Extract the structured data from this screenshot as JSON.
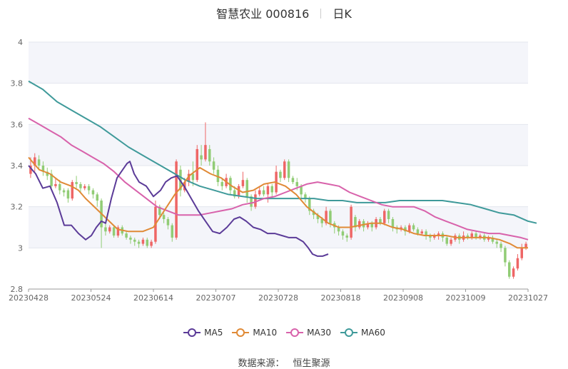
{
  "title": {
    "name": "智慧农业 000816",
    "period": "日K"
  },
  "source": {
    "label": "数据来源：",
    "value": "恒生聚源"
  },
  "colors": {
    "up": "#ee6666",
    "down": "#91cc75",
    "ma5": "#5b3b98",
    "ma10": "#e08a36",
    "ma30": "#d862ab",
    "ma60": "#3f9a9a"
  },
  "chart_data": {
    "type": "candlestick",
    "ylim": [
      2.8,
      4.0
    ],
    "yticks": [
      "2.8",
      "3",
      "3.2",
      "3.4",
      "3.6",
      "3.8",
      "4"
    ],
    "xticks": [
      "20230428",
      "20230524",
      "20230614",
      "20230707",
      "20230728",
      "20230818",
      "20230908",
      "20231009",
      "20231027"
    ],
    "legend": [
      "MA5",
      "MA10",
      "MA30",
      "MA60"
    ],
    "grid": true,
    "candles": [
      [
        3.36,
        3.4,
        3.44,
        3.34
      ],
      [
        3.4,
        3.44,
        3.46,
        3.37
      ],
      [
        3.43,
        3.4,
        3.45,
        3.38
      ],
      [
        3.4,
        3.37,
        3.42,
        3.35
      ],
      [
        3.37,
        3.35,
        3.39,
        3.33
      ],
      [
        3.36,
        3.3,
        3.38,
        3.29
      ],
      [
        3.3,
        3.31,
        3.34,
        3.29
      ],
      [
        3.31,
        3.28,
        3.33,
        3.26
      ],
      [
        3.28,
        3.27,
        3.29,
        3.25
      ],
      [
        3.28,
        3.24,
        3.29,
        3.22
      ],
      [
        3.24,
        3.32,
        3.33,
        3.23
      ],
      [
        3.32,
        3.31,
        3.35,
        3.29
      ],
      [
        3.31,
        3.29,
        3.32,
        3.27
      ],
      [
        3.29,
        3.3,
        3.31,
        3.28
      ],
      [
        3.3,
        3.28,
        3.31,
        3.26
      ],
      [
        3.28,
        3.26,
        3.29,
        3.24
      ],
      [
        3.26,
        3.23,
        3.27,
        3.2
      ],
      [
        3.23,
        3.1,
        3.24,
        3.0
      ],
      [
        3.1,
        3.08,
        3.12,
        3.06
      ],
      [
        3.08,
        3.1,
        3.11,
        3.07
      ],
      [
        3.1,
        3.06,
        3.11,
        3.05
      ],
      [
        3.06,
        3.1,
        3.11,
        3.05
      ],
      [
        3.1,
        3.07,
        3.11,
        3.06
      ],
      [
        3.07,
        3.05,
        3.08,
        3.04
      ],
      [
        3.05,
        3.04,
        3.06,
        3.02
      ],
      [
        3.04,
        3.03,
        3.05,
        3.01
      ],
      [
        3.03,
        3.02,
        3.04,
        3.0
      ],
      [
        3.02,
        3.04,
        3.05,
        3.01
      ],
      [
        3.04,
        3.01,
        3.05,
        3.0
      ],
      [
        3.01,
        3.03,
        3.04,
        3.0
      ],
      [
        3.03,
        3.2,
        3.23,
        3.02
      ],
      [
        3.2,
        3.16,
        3.21,
        3.14
      ],
      [
        3.16,
        3.14,
        3.17,
        3.12
      ],
      [
        3.14,
        3.11,
        3.15,
        3.09
      ],
      [
        3.11,
        3.05,
        3.12,
        3.03
      ],
      [
        3.05,
        3.42,
        3.43,
        3.04
      ],
      [
        3.38,
        3.28,
        3.4,
        3.25
      ],
      [
        3.28,
        3.32,
        3.34,
        3.27
      ],
      [
        3.32,
        3.36,
        3.38,
        3.3
      ],
      [
        3.36,
        3.33,
        3.42,
        3.3
      ],
      [
        3.33,
        3.48,
        3.5,
        3.32
      ],
      [
        3.45,
        3.43,
        3.5,
        3.4
      ],
      [
        3.43,
        3.5,
        3.61,
        3.42
      ],
      [
        3.48,
        3.42,
        3.5,
        3.4
      ],
      [
        3.42,
        3.38,
        3.44,
        3.36
      ],
      [
        3.38,
        3.32,
        3.4,
        3.3
      ],
      [
        3.32,
        3.3,
        3.34,
        3.28
      ],
      [
        3.3,
        3.34,
        3.36,
        3.29
      ],
      [
        3.34,
        3.28,
        3.35,
        3.26
      ],
      [
        3.28,
        3.25,
        3.3,
        3.24
      ],
      [
        3.25,
        3.3,
        3.31,
        3.24
      ],
      [
        3.3,
        3.33,
        3.37,
        3.29
      ],
      [
        3.33,
        3.25,
        3.34,
        3.22
      ],
      [
        3.25,
        3.2,
        3.26,
        3.18
      ],
      [
        3.2,
        3.26,
        3.28,
        3.19
      ],
      [
        3.26,
        3.28,
        3.3,
        3.25
      ],
      [
        3.28,
        3.26,
        3.3,
        3.25
      ],
      [
        3.26,
        3.3,
        3.31,
        3.22
      ],
      [
        3.3,
        3.27,
        3.31,
        3.25
      ],
      [
        3.27,
        3.37,
        3.4,
        3.26
      ],
      [
        3.37,
        3.34,
        3.38,
        3.32
      ],
      [
        3.34,
        3.42,
        3.43,
        3.33
      ],
      [
        3.42,
        3.34,
        3.43,
        3.32
      ],
      [
        3.34,
        3.32,
        3.35,
        3.31
      ],
      [
        3.32,
        3.3,
        3.34,
        3.28
      ],
      [
        3.3,
        3.26,
        3.31,
        3.24
      ],
      [
        3.26,
        3.24,
        3.27,
        3.22
      ],
      [
        3.24,
        3.18,
        3.25,
        3.16
      ],
      [
        3.18,
        3.16,
        3.19,
        3.14
      ],
      [
        3.16,
        3.14,
        3.17,
        3.12
      ],
      [
        3.14,
        3.12,
        3.15,
        3.1
      ],
      [
        3.12,
        3.18,
        3.2,
        3.11
      ],
      [
        3.18,
        3.12,
        3.19,
        3.1
      ],
      [
        3.12,
        3.1,
        3.13,
        3.07
      ],
      [
        3.1,
        3.08,
        3.11,
        3.06
      ],
      [
        3.08,
        3.06,
        3.09,
        3.04
      ],
      [
        3.06,
        3.05,
        3.07,
        3.03
      ],
      [
        3.05,
        3.2,
        3.21,
        3.04
      ],
      [
        3.15,
        3.1,
        3.16,
        3.08
      ],
      [
        3.1,
        3.13,
        3.14,
        3.09
      ],
      [
        3.13,
        3.1,
        3.14,
        3.08
      ],
      [
        3.1,
        3.12,
        3.13,
        3.09
      ],
      [
        3.12,
        3.1,
        3.13,
        3.08
      ],
      [
        3.1,
        3.14,
        3.15,
        3.09
      ],
      [
        3.14,
        3.12,
        3.15,
        3.11
      ],
      [
        3.12,
        3.18,
        3.19,
        3.11
      ],
      [
        3.18,
        3.14,
        3.19,
        3.12
      ],
      [
        3.14,
        3.1,
        3.15,
        3.08
      ],
      [
        3.1,
        3.09,
        3.11,
        3.07
      ],
      [
        3.09,
        3.1,
        3.11,
        3.08
      ],
      [
        3.1,
        3.08,
        3.11,
        3.06
      ],
      [
        3.08,
        3.11,
        3.12,
        3.07
      ],
      [
        3.11,
        3.09,
        3.12,
        3.08
      ],
      [
        3.09,
        3.07,
        3.1,
        3.06
      ],
      [
        3.07,
        3.08,
        3.09,
        3.06
      ],
      [
        3.08,
        3.06,
        3.09,
        3.04
      ],
      [
        3.06,
        3.05,
        3.07,
        3.03
      ],
      [
        3.05,
        3.06,
        3.07,
        3.04
      ],
      [
        3.06,
        3.07,
        3.08,
        3.04
      ],
      [
        3.07,
        3.05,
        3.08,
        3.03
      ],
      [
        3.05,
        3.02,
        3.06,
        3.01
      ],
      [
        3.02,
        3.04,
        3.05,
        3.01
      ],
      [
        3.04,
        3.06,
        3.07,
        3.03
      ],
      [
        3.06,
        3.04,
        3.07,
        3.02
      ],
      [
        3.04,
        3.06,
        3.08,
        3.03
      ],
      [
        3.06,
        3.05,
        3.07,
        3.04
      ],
      [
        3.05,
        3.07,
        3.08,
        3.04
      ],
      [
        3.07,
        3.05,
        3.08,
        3.04
      ],
      [
        3.05,
        3.06,
        3.07,
        3.04
      ],
      [
        3.06,
        3.04,
        3.07,
        3.03
      ],
      [
        3.04,
        3.05,
        3.06,
        3.03
      ],
      [
        3.05,
        3.03,
        3.06,
        3.02
      ],
      [
        3.03,
        3.02,
        3.04,
        3.0
      ],
      [
        3.02,
        3.0,
        3.03,
        2.98
      ],
      [
        3.0,
        2.93,
        3.01,
        2.91
      ],
      [
        2.93,
        2.86,
        2.94,
        2.85
      ],
      [
        2.86,
        2.9,
        2.91,
        2.85
      ],
      [
        2.9,
        2.95,
        2.97,
        2.89
      ],
      [
        2.95,
        3.0,
        3.02,
        2.94
      ],
      [
        3.0,
        3.02,
        3.03,
        2.99
      ]
    ],
    "ma5": [
      [
        0,
        3.4
      ],
      [
        10,
        3.36
      ],
      [
        20,
        3.29
      ],
      [
        30,
        3.3
      ],
      [
        40,
        3.22
      ],
      [
        50,
        3.11
      ],
      [
        60,
        3.11
      ],
      [
        70,
        3.07
      ],
      [
        80,
        3.04
      ],
      [
        88,
        3.06
      ],
      [
        95,
        3.1
      ],
      [
        102,
        3.13
      ],
      [
        108,
        3.12
      ],
      [
        116,
        3.24
      ],
      [
        124,
        3.34
      ],
      [
        130,
        3.37
      ],
      [
        138,
        3.41
      ],
      [
        142,
        3.42
      ],
      [
        148,
        3.36
      ],
      [
        155,
        3.32
      ],
      [
        165,
        3.3
      ],
      [
        175,
        3.25
      ],
      [
        185,
        3.28
      ],
      [
        192,
        3.32
      ],
      [
        200,
        3.34
      ],
      [
        208,
        3.35
      ],
      [
        218,
        3.3
      ],
      [
        228,
        3.24
      ],
      [
        238,
        3.18
      ],
      [
        248,
        3.13
      ],
      [
        258,
        3.08
      ],
      [
        268,
        3.07
      ],
      [
        278,
        3.1
      ],
      [
        288,
        3.14
      ],
      [
        296,
        3.15
      ],
      [
        305,
        3.13
      ],
      [
        315,
        3.1
      ],
      [
        325,
        3.09
      ],
      [
        335,
        3.07
      ],
      [
        345,
        3.07
      ],
      [
        355,
        3.06
      ],
      [
        365,
        3.05
      ],
      [
        375,
        3.05
      ],
      [
        385,
        3.03
      ],
      [
        392,
        3.0
      ],
      [
        398,
        2.97
      ],
      [
        405,
        2.96
      ],
      [
        412,
        2.96
      ],
      [
        420,
        2.97
      ]
    ],
    "ma10": [
      [
        0,
        3.44
      ],
      [
        15,
        3.38
      ],
      [
        30,
        3.36
      ],
      [
        45,
        3.32
      ],
      [
        60,
        3.3
      ],
      [
        70,
        3.28
      ],
      [
        80,
        3.24
      ],
      [
        95,
        3.19
      ],
      [
        110,
        3.14
      ],
      [
        125,
        3.09
      ],
      [
        140,
        3.08
      ],
      [
        160,
        3.08
      ],
      [
        175,
        3.1
      ],
      [
        190,
        3.18
      ],
      [
        205,
        3.26
      ],
      [
        215,
        3.3
      ],
      [
        225,
        3.35
      ],
      [
        240,
        3.39
      ],
      [
        255,
        3.36
      ],
      [
        270,
        3.34
      ],
      [
        285,
        3.3
      ],
      [
        300,
        3.27
      ],
      [
        315,
        3.28
      ],
      [
        330,
        3.31
      ],
      [
        345,
        3.32
      ],
      [
        360,
        3.3
      ],
      [
        375,
        3.26
      ],
      [
        390,
        3.2
      ],
      [
        405,
        3.16
      ],
      [
        420,
        3.12
      ],
      [
        435,
        3.1
      ],
      [
        450,
        3.1
      ],
      [
        465,
        3.11
      ],
      [
        480,
        3.12
      ],
      [
        495,
        3.12
      ],
      [
        510,
        3.1
      ],
      [
        525,
        3.09
      ],
      [
        540,
        3.07
      ],
      [
        555,
        3.06
      ],
      [
        570,
        3.06
      ],
      [
        585,
        3.06
      ],
      [
        600,
        3.05
      ],
      [
        615,
        3.05
      ],
      [
        630,
        3.05
      ],
      [
        645,
        3.05
      ],
      [
        660,
        3.04
      ],
      [
        675,
        3.02
      ],
      [
        685,
        3.0
      ],
      [
        700,
        3.0
      ]
    ],
    "ma30": [
      [
        0,
        3.63
      ],
      [
        15,
        3.6
      ],
      [
        30,
        3.57
      ],
      [
        45,
        3.54
      ],
      [
        60,
        3.5
      ],
      [
        75,
        3.47
      ],
      [
        90,
        3.44
      ],
      [
        105,
        3.41
      ],
      [
        120,
        3.37
      ],
      [
        135,
        3.32
      ],
      [
        150,
        3.28
      ],
      [
        165,
        3.24
      ],
      [
        180,
        3.2
      ],
      [
        195,
        3.18
      ],
      [
        210,
        3.16
      ],
      [
        225,
        3.16
      ],
      [
        240,
        3.16
      ],
      [
        255,
        3.17
      ],
      [
        270,
        3.18
      ],
      [
        285,
        3.19
      ],
      [
        300,
        3.21
      ],
      [
        315,
        3.22
      ],
      [
        330,
        3.24
      ],
      [
        345,
        3.25
      ],
      [
        360,
        3.27
      ],
      [
        375,
        3.29
      ],
      [
        390,
        3.31
      ],
      [
        405,
        3.32
      ],
      [
        420,
        3.31
      ],
      [
        435,
        3.3
      ],
      [
        450,
        3.27
      ],
      [
        465,
        3.25
      ],
      [
        480,
        3.23
      ],
      [
        495,
        3.21
      ],
      [
        510,
        3.2
      ],
      [
        525,
        3.2
      ],
      [
        540,
        3.2
      ],
      [
        555,
        3.18
      ],
      [
        570,
        3.15
      ],
      [
        585,
        3.13
      ],
      [
        600,
        3.11
      ],
      [
        615,
        3.09
      ],
      [
        630,
        3.08
      ],
      [
        645,
        3.07
      ],
      [
        660,
        3.07
      ],
      [
        675,
        3.06
      ],
      [
        690,
        3.05
      ],
      [
        700,
        3.04
      ]
    ],
    "ma60": [
      [
        0,
        3.81
      ],
      [
        20,
        3.77
      ],
      [
        40,
        3.71
      ],
      [
        60,
        3.67
      ],
      [
        80,
        3.63
      ],
      [
        100,
        3.59
      ],
      [
        120,
        3.54
      ],
      [
        140,
        3.49
      ],
      [
        160,
        3.45
      ],
      [
        180,
        3.41
      ],
      [
        200,
        3.37
      ],
      [
        220,
        3.33
      ],
      [
        240,
        3.3
      ],
      [
        260,
        3.28
      ],
      [
        280,
        3.26
      ],
      [
        300,
        3.25
      ],
      [
        320,
        3.24
      ],
      [
        340,
        3.24
      ],
      [
        360,
        3.24
      ],
      [
        380,
        3.24
      ],
      [
        400,
        3.24
      ],
      [
        420,
        3.23
      ],
      [
        440,
        3.23
      ],
      [
        460,
        3.22
      ],
      [
        480,
        3.22
      ],
      [
        500,
        3.22
      ],
      [
        520,
        3.23
      ],
      [
        540,
        3.23
      ],
      [
        560,
        3.23
      ],
      [
        580,
        3.23
      ],
      [
        600,
        3.22
      ],
      [
        620,
        3.21
      ],
      [
        640,
        3.19
      ],
      [
        660,
        3.17
      ],
      [
        680,
        3.16
      ],
      [
        700,
        3.13
      ],
      [
        712,
        3.12
      ]
    ]
  }
}
